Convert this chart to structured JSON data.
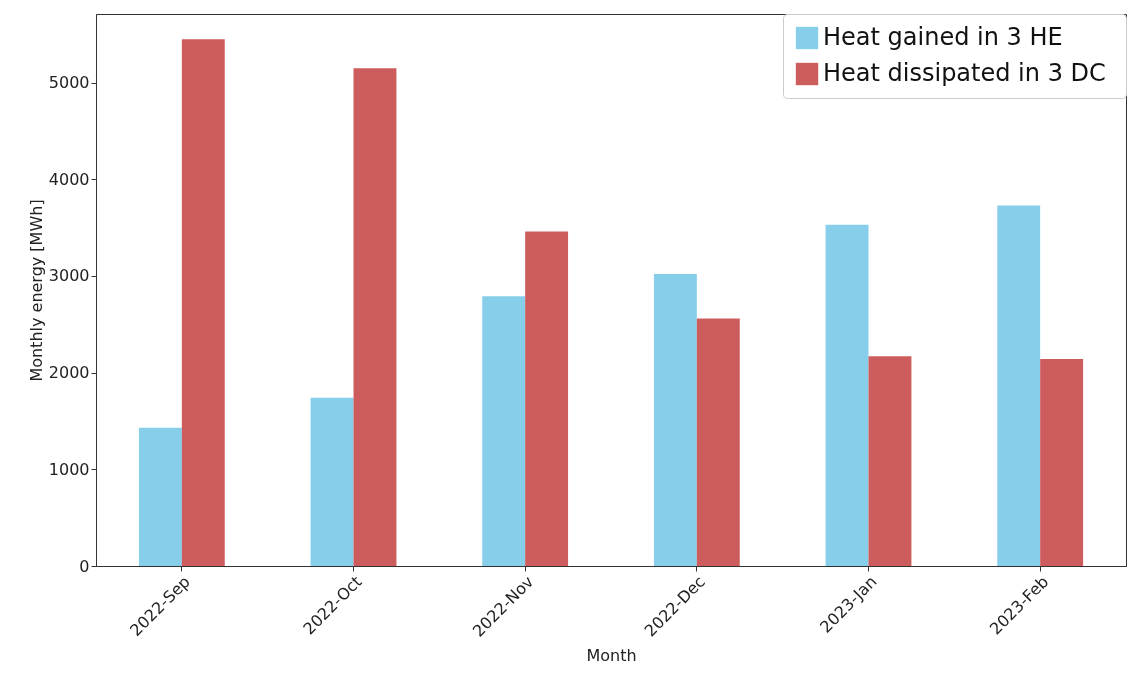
{
  "chart_data": {
    "type": "bar",
    "xlabel": "Month",
    "ylabel": "Monthly energy [MWh]",
    "categories": [
      "2022-Sep",
      "2022-Oct",
      "2022-Nov",
      "2022-Dec",
      "2023-Jan",
      "2023-Feb"
    ],
    "series": [
      {
        "name": "Heat gained in 3 HE",
        "color": "#87ceeb",
        "values": [
          1430,
          1740,
          2790,
          3020,
          3530,
          3730
        ]
      },
      {
        "name": "Heat dissipated  in 3 DC",
        "color": "#cd5c5c",
        "values": [
          5450,
          5150,
          3460,
          2560,
          2170,
          2140
        ]
      }
    ],
    "ylim": [
      0,
      5710
    ],
    "yticks": [
      0,
      1000,
      2000,
      3000,
      4000,
      5000
    ],
    "legend": "top right"
  }
}
